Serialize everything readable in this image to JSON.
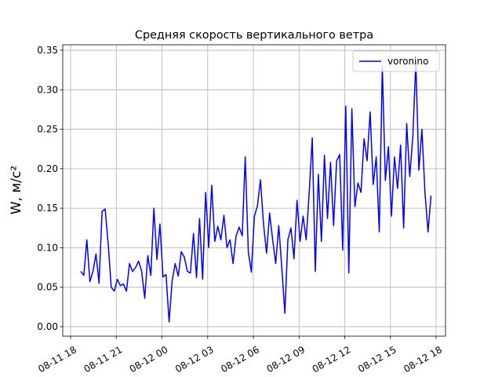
{
  "chart_data": {
    "type": "line",
    "title": "Средняя скорость вертикального ветра",
    "y_label": "W, м/с²",
    "x": [
      "08-11 18:40",
      "08-11 18:52",
      "08-11 19:04",
      "08-11 19:16",
      "08-11 19:28",
      "08-11 19:40",
      "08-11 19:52",
      "08-11 20:04",
      "08-11 20:16",
      "08-11 20:28",
      "08-11 20:40",
      "08-11 20:52",
      "08-11 21:04",
      "08-11 21:16",
      "08-11 21:28",
      "08-11 21:40",
      "08-11 21:52",
      "08-11 22:04",
      "08-11 22:16",
      "08-11 22:28",
      "08-11 22:40",
      "08-11 22:52",
      "08-11 23:04",
      "08-11 23:16",
      "08-11 23:28",
      "08-11 23:40",
      "08-11 23:52",
      "08-12 00:04",
      "08-12 00:16",
      "08-12 00:28",
      "08-12 00:40",
      "08-12 00:52",
      "08-12 01:04",
      "08-12 01:16",
      "08-12 01:28",
      "08-12 01:40",
      "08-12 01:52",
      "08-12 02:04",
      "08-12 02:16",
      "08-12 02:28",
      "08-12 02:40",
      "08-12 02:52",
      "08-12 03:04",
      "08-12 03:16",
      "08-12 03:28",
      "08-12 03:40",
      "08-12 03:52",
      "08-12 04:04",
      "08-12 04:16",
      "08-12 04:28",
      "08-12 04:40",
      "08-12 04:52",
      "08-12 05:04",
      "08-12 05:16",
      "08-12 05:28",
      "08-12 05:40",
      "08-12 05:52",
      "08-12 06:04",
      "08-12 06:16",
      "08-12 06:28",
      "08-12 06:40",
      "08-12 06:52",
      "08-12 07:04",
      "08-12 07:16",
      "08-12 07:28",
      "08-12 07:40",
      "08-12 07:52",
      "08-12 08:04",
      "08-12 08:16",
      "08-12 08:28",
      "08-12 08:40",
      "08-12 08:52",
      "08-12 09:04",
      "08-12 09:16",
      "08-12 09:28",
      "08-12 09:40",
      "08-12 09:52",
      "08-12 10:04",
      "08-12 10:16",
      "08-12 10:28",
      "08-12 10:40",
      "08-12 10:52",
      "08-12 11:04",
      "08-12 11:16",
      "08-12 11:28",
      "08-12 11:40",
      "08-12 11:52",
      "08-12 12:04",
      "08-12 12:16",
      "08-12 12:28",
      "08-12 12:40",
      "08-12 12:52",
      "08-12 13:04",
      "08-12 13:16",
      "08-12 13:28",
      "08-12 13:40",
      "08-12 13:52",
      "08-12 14:04",
      "08-12 14:16",
      "08-12 14:28",
      "08-12 14:40",
      "08-12 14:52",
      "08-12 15:04",
      "08-12 15:16",
      "08-12 15:28",
      "08-12 15:40",
      "08-12 15:52",
      "08-12 16:04",
      "08-12 16:16",
      "08-12 16:28",
      "08-12 16:40",
      "08-12 16:52",
      "08-12 17:04",
      "08-12 17:16",
      "08-12 17:28",
      "08-12 17:40"
    ],
    "series": [
      {
        "name": "voronino",
        "color": "#0000ff",
        "values": [
          0.07,
          0.065,
          0.11,
          0.057,
          0.07,
          0.092,
          0.055,
          0.146,
          0.149,
          0.105,
          0.05,
          0.045,
          0.06,
          0.052,
          0.054,
          0.045,
          0.08,
          0.07,
          0.075,
          0.083,
          0.07,
          0.036,
          0.09,
          0.065,
          0.15,
          0.085,
          0.13,
          0.063,
          0.066,
          0.006,
          0.058,
          0.08,
          0.064,
          0.095,
          0.088,
          0.07,
          0.068,
          0.118,
          0.062,
          0.137,
          0.06,
          0.17,
          0.1,
          0.179,
          0.108,
          0.127,
          0.11,
          0.141,
          0.1,
          0.11,
          0.08,
          0.115,
          0.126,
          0.115,
          0.215,
          0.095,
          0.069,
          0.14,
          0.153,
          0.186,
          0.13,
          0.093,
          0.144,
          0.11,
          0.08,
          0.128,
          0.075,
          0.017,
          0.11,
          0.125,
          0.086,
          0.16,
          0.108,
          0.14,
          0.11,
          0.17,
          0.239,
          0.07,
          0.193,
          0.108,
          0.217,
          0.137,
          0.208,
          0.128,
          0.21,
          0.218,
          0.097,
          0.279,
          0.068,
          0.276,
          0.152,
          0.182,
          0.17,
          0.238,
          0.21,
          0.272,
          0.18,
          0.215,
          0.12,
          0.33,
          0.185,
          0.228,
          0.14,
          0.215,
          0.175,
          0.23,
          0.125,
          0.257,
          0.19,
          0.24,
          0.335,
          0.198,
          0.25,
          0.17,
          0.12,
          0.166
        ]
      }
    ],
    "xlim": [
      "08-11 17:29",
      "08-12 18:37"
    ],
    "xticks": [
      "08-11 18",
      "08-11 21",
      "08-12 00",
      "08-12 03",
      "08-12 06",
      "08-12 09",
      "08-12 12",
      "08-12 15",
      "08-12 18"
    ],
    "ylim": [
      -0.012,
      0.357
    ],
    "yticks": [
      {
        "value": 0,
        "label": "0.00"
      },
      0.05,
      {
        "value": 0.1,
        "label": "0.10"
      },
      0.15,
      {
        "value": 0.2,
        "label": "0.20"
      },
      0.25,
      {
        "value": 0.3,
        "label": "0.30"
      },
      0.35
    ],
    "grid": true,
    "legend": "upper right"
  }
}
